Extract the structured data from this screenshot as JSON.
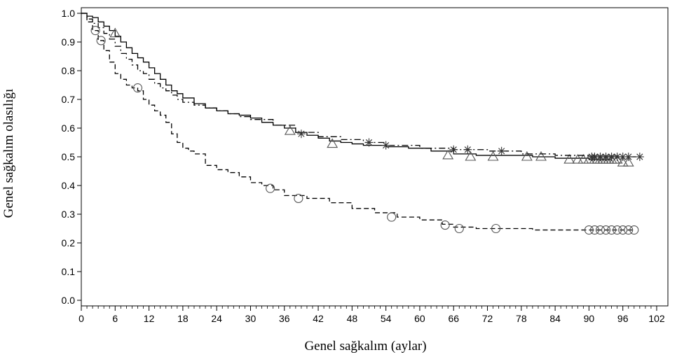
{
  "chart_data": {
    "type": "line",
    "chart_subtype": "kaplan-meier survival curves",
    "title": "",
    "xlabel": "Genel sağkalım (aylar)",
    "ylabel": "Genel sağkalım olasılığı",
    "xlim": [
      0,
      102
    ],
    "ylim": [
      0,
      1.0
    ],
    "xticks": [
      0,
      6,
      12,
      18,
      24,
      30,
      36,
      42,
      48,
      54,
      60,
      66,
      72,
      78,
      84,
      90,
      96,
      102
    ],
    "xtick_labels": [
      "0",
      "6",
      "12",
      "18",
      "24",
      "30",
      "36",
      "42",
      "48",
      "54",
      "60",
      "66",
      "72",
      "78",
      "84",
      "90",
      "96",
      "102"
    ],
    "yticks": [
      0.0,
      0.1,
      0.2,
      0.3,
      0.4,
      0.5,
      0.6,
      0.7,
      0.8,
      0.9,
      1.0
    ],
    "ytick_labels": [
      "0.0",
      "0.1",
      "0.2",
      "0.3",
      "0.4",
      "0.5",
      "0.6",
      "0.7",
      "0.8",
      "0.9",
      "1.0"
    ],
    "grid": false,
    "legend": "none",
    "series": [
      {
        "line_style": "solid",
        "censor_marker": "triangle",
        "color": "#000000",
        "x": [
          0,
          1,
          2,
          3,
          4,
          5,
          6,
          7,
          8,
          9,
          10,
          11,
          12,
          13,
          14,
          15,
          16,
          17,
          18,
          20,
          22,
          24,
          26,
          28,
          30,
          32,
          34,
          36,
          38,
          40,
          42,
          44,
          46,
          48,
          50,
          54,
          58,
          62,
          66,
          70,
          74,
          80,
          84,
          90,
          94
        ],
        "y": [
          1.0,
          0.99,
          0.985,
          0.97,
          0.955,
          0.94,
          0.92,
          0.9,
          0.88,
          0.86,
          0.845,
          0.83,
          0.81,
          0.79,
          0.77,
          0.75,
          0.73,
          0.72,
          0.705,
          0.685,
          0.67,
          0.66,
          0.65,
          0.645,
          0.635,
          0.62,
          0.61,
          0.6,
          0.585,
          0.575,
          0.565,
          0.555,
          0.55,
          0.545,
          0.54,
          0.535,
          0.53,
          0.52,
          0.51,
          0.505,
          0.505,
          0.5,
          0.495,
          0.49,
          0.49
        ],
        "censored_x": [
          6,
          37,
          44.5,
          65,
          69,
          73,
          79,
          81.5,
          86.5,
          88,
          89,
          90,
          91,
          91.5,
          92,
          92.5,
          93,
          93.5,
          94,
          94.5,
          95,
          96,
          97
        ],
        "censored_y": [
          0.93,
          0.59,
          0.545,
          0.505,
          0.5,
          0.5,
          0.5,
          0.5,
          0.49,
          0.49,
          0.49,
          0.49,
          0.49,
          0.49,
          0.49,
          0.49,
          0.49,
          0.49,
          0.49,
          0.49,
          0.49,
          0.48,
          0.48
        ]
      },
      {
        "line_style": "dash-dot",
        "censor_marker": "star",
        "color": "#000000",
        "x": [
          0,
          1,
          2,
          3,
          4,
          5,
          6,
          7,
          8,
          9,
          10,
          11,
          12,
          13,
          14,
          15,
          16,
          17,
          18,
          20,
          22,
          24,
          26,
          28,
          30,
          34,
          38,
          42,
          46,
          50,
          54,
          60,
          66,
          72,
          78,
          84,
          90,
          96,
          99
        ],
        "y": [
          1.0,
          0.98,
          0.965,
          0.95,
          0.93,
          0.91,
          0.885,
          0.86,
          0.84,
          0.82,
          0.8,
          0.79,
          0.77,
          0.755,
          0.74,
          0.73,
          0.715,
          0.7,
          0.69,
          0.68,
          0.67,
          0.66,
          0.65,
          0.64,
          0.63,
          0.61,
          0.585,
          0.57,
          0.56,
          0.55,
          0.54,
          0.53,
          0.525,
          0.52,
          0.51,
          0.505,
          0.5,
          0.5,
          0.5
        ],
        "censored_x": [
          39,
          51,
          54,
          66,
          68.5,
          74.5,
          90.5,
          91,
          92,
          93,
          94,
          95,
          96,
          97,
          99
        ],
        "censored_y": [
          0.58,
          0.55,
          0.54,
          0.525,
          0.525,
          0.52,
          0.5,
          0.5,
          0.5,
          0.5,
          0.5,
          0.5,
          0.5,
          0.5,
          0.5
        ]
      },
      {
        "line_style": "dashed",
        "censor_marker": "circle",
        "color": "#000000",
        "x": [
          0,
          1,
          2,
          3,
          4,
          5,
          6,
          7,
          8,
          9,
          10,
          11,
          12,
          13,
          14,
          15,
          16,
          17,
          18,
          19,
          20,
          22,
          24,
          26,
          28,
          30,
          32,
          34,
          36,
          40,
          44,
          48,
          52,
          56,
          60,
          64,
          66,
          70,
          74,
          80,
          90,
          98
        ],
        "y": [
          1.0,
          0.97,
          0.94,
          0.905,
          0.87,
          0.83,
          0.79,
          0.77,
          0.75,
          0.74,
          0.73,
          0.7,
          0.68,
          0.66,
          0.645,
          0.62,
          0.58,
          0.55,
          0.53,
          0.52,
          0.51,
          0.47,
          0.455,
          0.445,
          0.43,
          0.41,
          0.4,
          0.385,
          0.365,
          0.355,
          0.34,
          0.32,
          0.305,
          0.29,
          0.28,
          0.265,
          0.255,
          0.25,
          0.25,
          0.245,
          0.245,
          0.245
        ],
        "censored_x": [
          2.5,
          3.5,
          10,
          33.5,
          38.5,
          55,
          64.5,
          67,
          73.5,
          90,
          91,
          92,
          93,
          94,
          95,
          96,
          97,
          98
        ],
        "censored_y": [
          0.94,
          0.905,
          0.74,
          0.39,
          0.355,
          0.29,
          0.262,
          0.25,
          0.25,
          0.245,
          0.245,
          0.245,
          0.245,
          0.245,
          0.245,
          0.245,
          0.245,
          0.245
        ]
      }
    ]
  }
}
